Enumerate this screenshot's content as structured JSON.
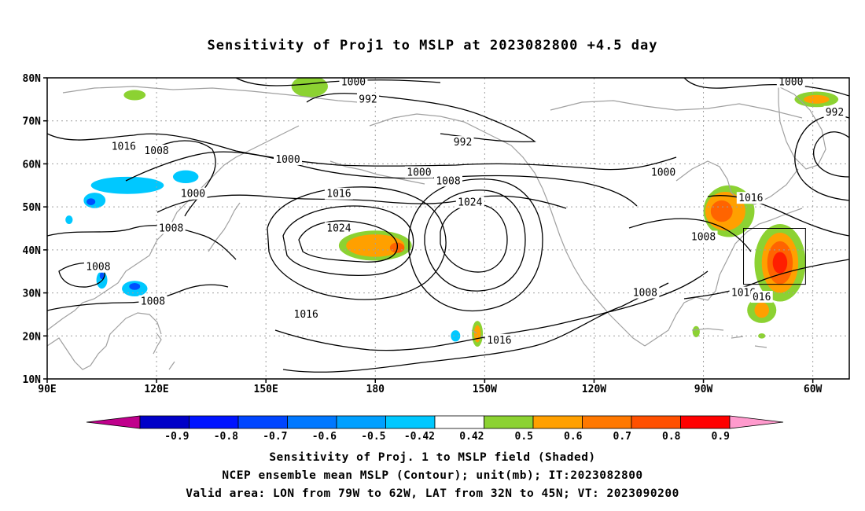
{
  "title": "Sensitivity of Proj1 to MSLP at 2023082800 +4.5 day",
  "map": {
    "lat_range": [
      10,
      80
    ],
    "lon_range_deg_east": [
      90,
      310
    ],
    "lat_ticks": [
      {
        "value": 80,
        "label": "80N"
      },
      {
        "value": 70,
        "label": "70N"
      },
      {
        "value": 60,
        "label": "60N"
      },
      {
        "value": 50,
        "label": "50N"
      },
      {
        "value": 40,
        "label": "40N"
      },
      {
        "value": 30,
        "label": "30N"
      },
      {
        "value": 20,
        "label": "20N"
      },
      {
        "value": 10,
        "label": "10N"
      }
    ],
    "lon_ticks": [
      {
        "value": 90,
        "label": "90E"
      },
      {
        "value": 120,
        "label": "120E"
      },
      {
        "value": 150,
        "label": "150E"
      },
      {
        "value": 180,
        "label": "180"
      },
      {
        "value": 210,
        "label": "150W"
      },
      {
        "value": 240,
        "label": "120W"
      },
      {
        "value": 270,
        "label": "90W"
      },
      {
        "value": 300,
        "label": "60W"
      }
    ],
    "grid": "dotted",
    "valid_box": {
      "lon_w": 281,
      "lon_e": 298,
      "lat_s": 32,
      "lat_n": 45
    },
    "contour_labels": [
      {
        "text": "1000",
        "lon": 174,
        "lat": 79
      },
      {
        "text": "992",
        "lon": 178,
        "lat": 75
      },
      {
        "text": "1000",
        "lon": 294,
        "lat": 79
      },
      {
        "text": "992",
        "lon": 306,
        "lat": 72
      },
      {
        "text": "1016",
        "lon": 111,
        "lat": 64
      },
      {
        "text": "1008",
        "lon": 120,
        "lat": 63
      },
      {
        "text": "1000",
        "lon": 156,
        "lat": 61
      },
      {
        "text": "992",
        "lon": 204,
        "lat": 65
      },
      {
        "text": "1000",
        "lon": 192,
        "lat": 58
      },
      {
        "text": "1008",
        "lon": 200,
        "lat": 56
      },
      {
        "text": "1000",
        "lon": 259,
        "lat": 58
      },
      {
        "text": "1000",
        "lon": 130,
        "lat": 53
      },
      {
        "text": "1016",
        "lon": 170,
        "lat": 53
      },
      {
        "text": "1024",
        "lon": 206,
        "lat": 51
      },
      {
        "text": "1016",
        "lon": 283,
        "lat": 52
      },
      {
        "text": "1024",
        "lon": 170,
        "lat": 45
      },
      {
        "text": "1008",
        "lon": 124,
        "lat": 45
      },
      {
        "text": "1008",
        "lon": 270,
        "lat": 43
      },
      {
        "text": "1008",
        "lon": 104,
        "lat": 36
      },
      {
        "text": "1008",
        "lon": 119,
        "lat": 28
      },
      {
        "text": "1008",
        "lon": 254,
        "lat": 30
      },
      {
        "text": "1016",
        "lon": 281,
        "lat": 30
      },
      {
        "text": "016",
        "lon": 286,
        "lat": 29
      },
      {
        "text": "1016",
        "lon": 161,
        "lat": 25
      },
      {
        "text": "1016",
        "lon": 214,
        "lat": 19
      }
    ],
    "shaded_regions": [
      {
        "color": "green",
        "lon": 114,
        "lat": 76,
        "rx": 3,
        "ry": 1.2
      },
      {
        "color": "green",
        "lon": 162,
        "lat": 78,
        "rx": 5,
        "ry": 2.5
      },
      {
        "color": "green",
        "lon": 301,
        "lat": 75,
        "rx": 6,
        "ry": 1.8
      },
      {
        "color": "orange",
        "lon": 301,
        "lat": 75,
        "rx": 3.5,
        "ry": 1.0
      },
      {
        "color": "lightblue",
        "lon": 112,
        "lat": 55,
        "rx": 10,
        "ry": 2.0
      },
      {
        "color": "lightblue",
        "lon": 103,
        "lat": 51.5,
        "rx": 3,
        "ry": 1.8
      },
      {
        "color": "blue",
        "lon": 102,
        "lat": 51.2,
        "rx": 1.2,
        "ry": 0.8
      },
      {
        "color": "lightblue",
        "lon": 128,
        "lat": 57,
        "rx": 3.5,
        "ry": 1.5
      },
      {
        "color": "lightblue",
        "lon": 96,
        "lat": 47,
        "rx": 1,
        "ry": 1
      },
      {
        "color": "lightblue",
        "lon": 105,
        "lat": 33,
        "rx": 1.5,
        "ry": 2
      },
      {
        "color": "blue",
        "lon": 105,
        "lat": 34,
        "rx": 0.6,
        "ry": 0.8
      },
      {
        "color": "lightblue",
        "lon": 114,
        "lat": 31,
        "rx": 3.5,
        "ry": 1.8
      },
      {
        "color": "blue",
        "lon": 114,
        "lat": 31.5,
        "rx": 1.5,
        "ry": 0.8
      },
      {
        "color": "green",
        "lon": 180,
        "lat": 41,
        "rx": 10,
        "ry": 3.5
      },
      {
        "color": "orange",
        "lon": 180,
        "lat": 41,
        "rx": 8,
        "ry": 2.6
      },
      {
        "color": "darkorange",
        "lon": 186,
        "lat": 40.5,
        "rx": 2,
        "ry": 1.2
      },
      {
        "color": "lightblue",
        "lon": 202,
        "lat": 20,
        "rx": 1.3,
        "ry": 1.3
      },
      {
        "color": "green",
        "lon": 208,
        "lat": 20.5,
        "rx": 1.5,
        "ry": 3
      },
      {
        "color": "orange",
        "lon": 208,
        "lat": 20.5,
        "rx": 0.9,
        "ry": 2
      },
      {
        "color": "green",
        "lon": 277,
        "lat": 49,
        "rx": 7,
        "ry": 6
      },
      {
        "color": "orange",
        "lon": 276,
        "lat": 49,
        "rx": 5.5,
        "ry": 4.5
      },
      {
        "color": "darkorange",
        "lon": 275,
        "lat": 49,
        "rx": 3,
        "ry": 2.5
      },
      {
        "color": "green",
        "lon": 291,
        "lat": 37,
        "rx": 7,
        "ry": 9
      },
      {
        "color": "orange",
        "lon": 291,
        "lat": 37,
        "rx": 5,
        "ry": 7
      },
      {
        "color": "darkorange",
        "lon": 291,
        "lat": 37,
        "rx": 3.5,
        "ry": 5
      },
      {
        "color": "red",
        "lon": 291,
        "lat": 37,
        "rx": 2,
        "ry": 2.5
      },
      {
        "color": "green",
        "lon": 286,
        "lat": 26,
        "rx": 4,
        "ry": 3
      },
      {
        "color": "orange",
        "lon": 286,
        "lat": 26,
        "rx": 2,
        "ry": 1.8
      },
      {
        "color": "green",
        "lon": 268,
        "lat": 21,
        "rx": 1,
        "ry": 1.3
      },
      {
        "color": "green",
        "lon": 286,
        "lat": 20,
        "rx": 1,
        "ry": 0.6
      }
    ]
  },
  "colorbar": {
    "left_arrow_color": "#c0008c",
    "right_arrow_color": "#ff9acd",
    "bins": [
      {
        "color": "#0000c8",
        "label": "-0.9"
      },
      {
        "color": "#0014ff",
        "label": "-0.8"
      },
      {
        "color": "#0046ff",
        "label": "-0.7"
      },
      {
        "color": "#0078ff",
        "label": "-0.6"
      },
      {
        "color": "#00a0ff",
        "label": "-0.5"
      },
      {
        "color": "#00c8ff",
        "label": "-0.42"
      },
      {
        "color": "#ffffff",
        "label": "0.42"
      },
      {
        "color": "#8cd232",
        "label": "0.5"
      },
      {
        "color": "#ffa000",
        "label": "0.6"
      },
      {
        "color": "#ff7800",
        "label": "0.7"
      },
      {
        "color": "#ff5000",
        "label": "0.8"
      },
      {
        "color": "#ff0000",
        "label": "0.9"
      }
    ]
  },
  "colors": {
    "blue": "#0050ff",
    "lightblue": "#00c8ff",
    "green": "#8cd232",
    "orange": "#ffa000",
    "darkorange": "#ff6400",
    "red": "#ff1e00",
    "coast": "#a0a0a0",
    "contour": "#000000"
  },
  "captions": {
    "line1": "Sensitivity of Proj. 1 to MSLP field (Shaded)",
    "line2": "NCEP ensemble mean MSLP (Contour); unit(mb); IT:2023082800",
    "line3": "Valid area: LON from 79W to 62W, LAT from 32N to 45N; VT: 2023090200"
  }
}
